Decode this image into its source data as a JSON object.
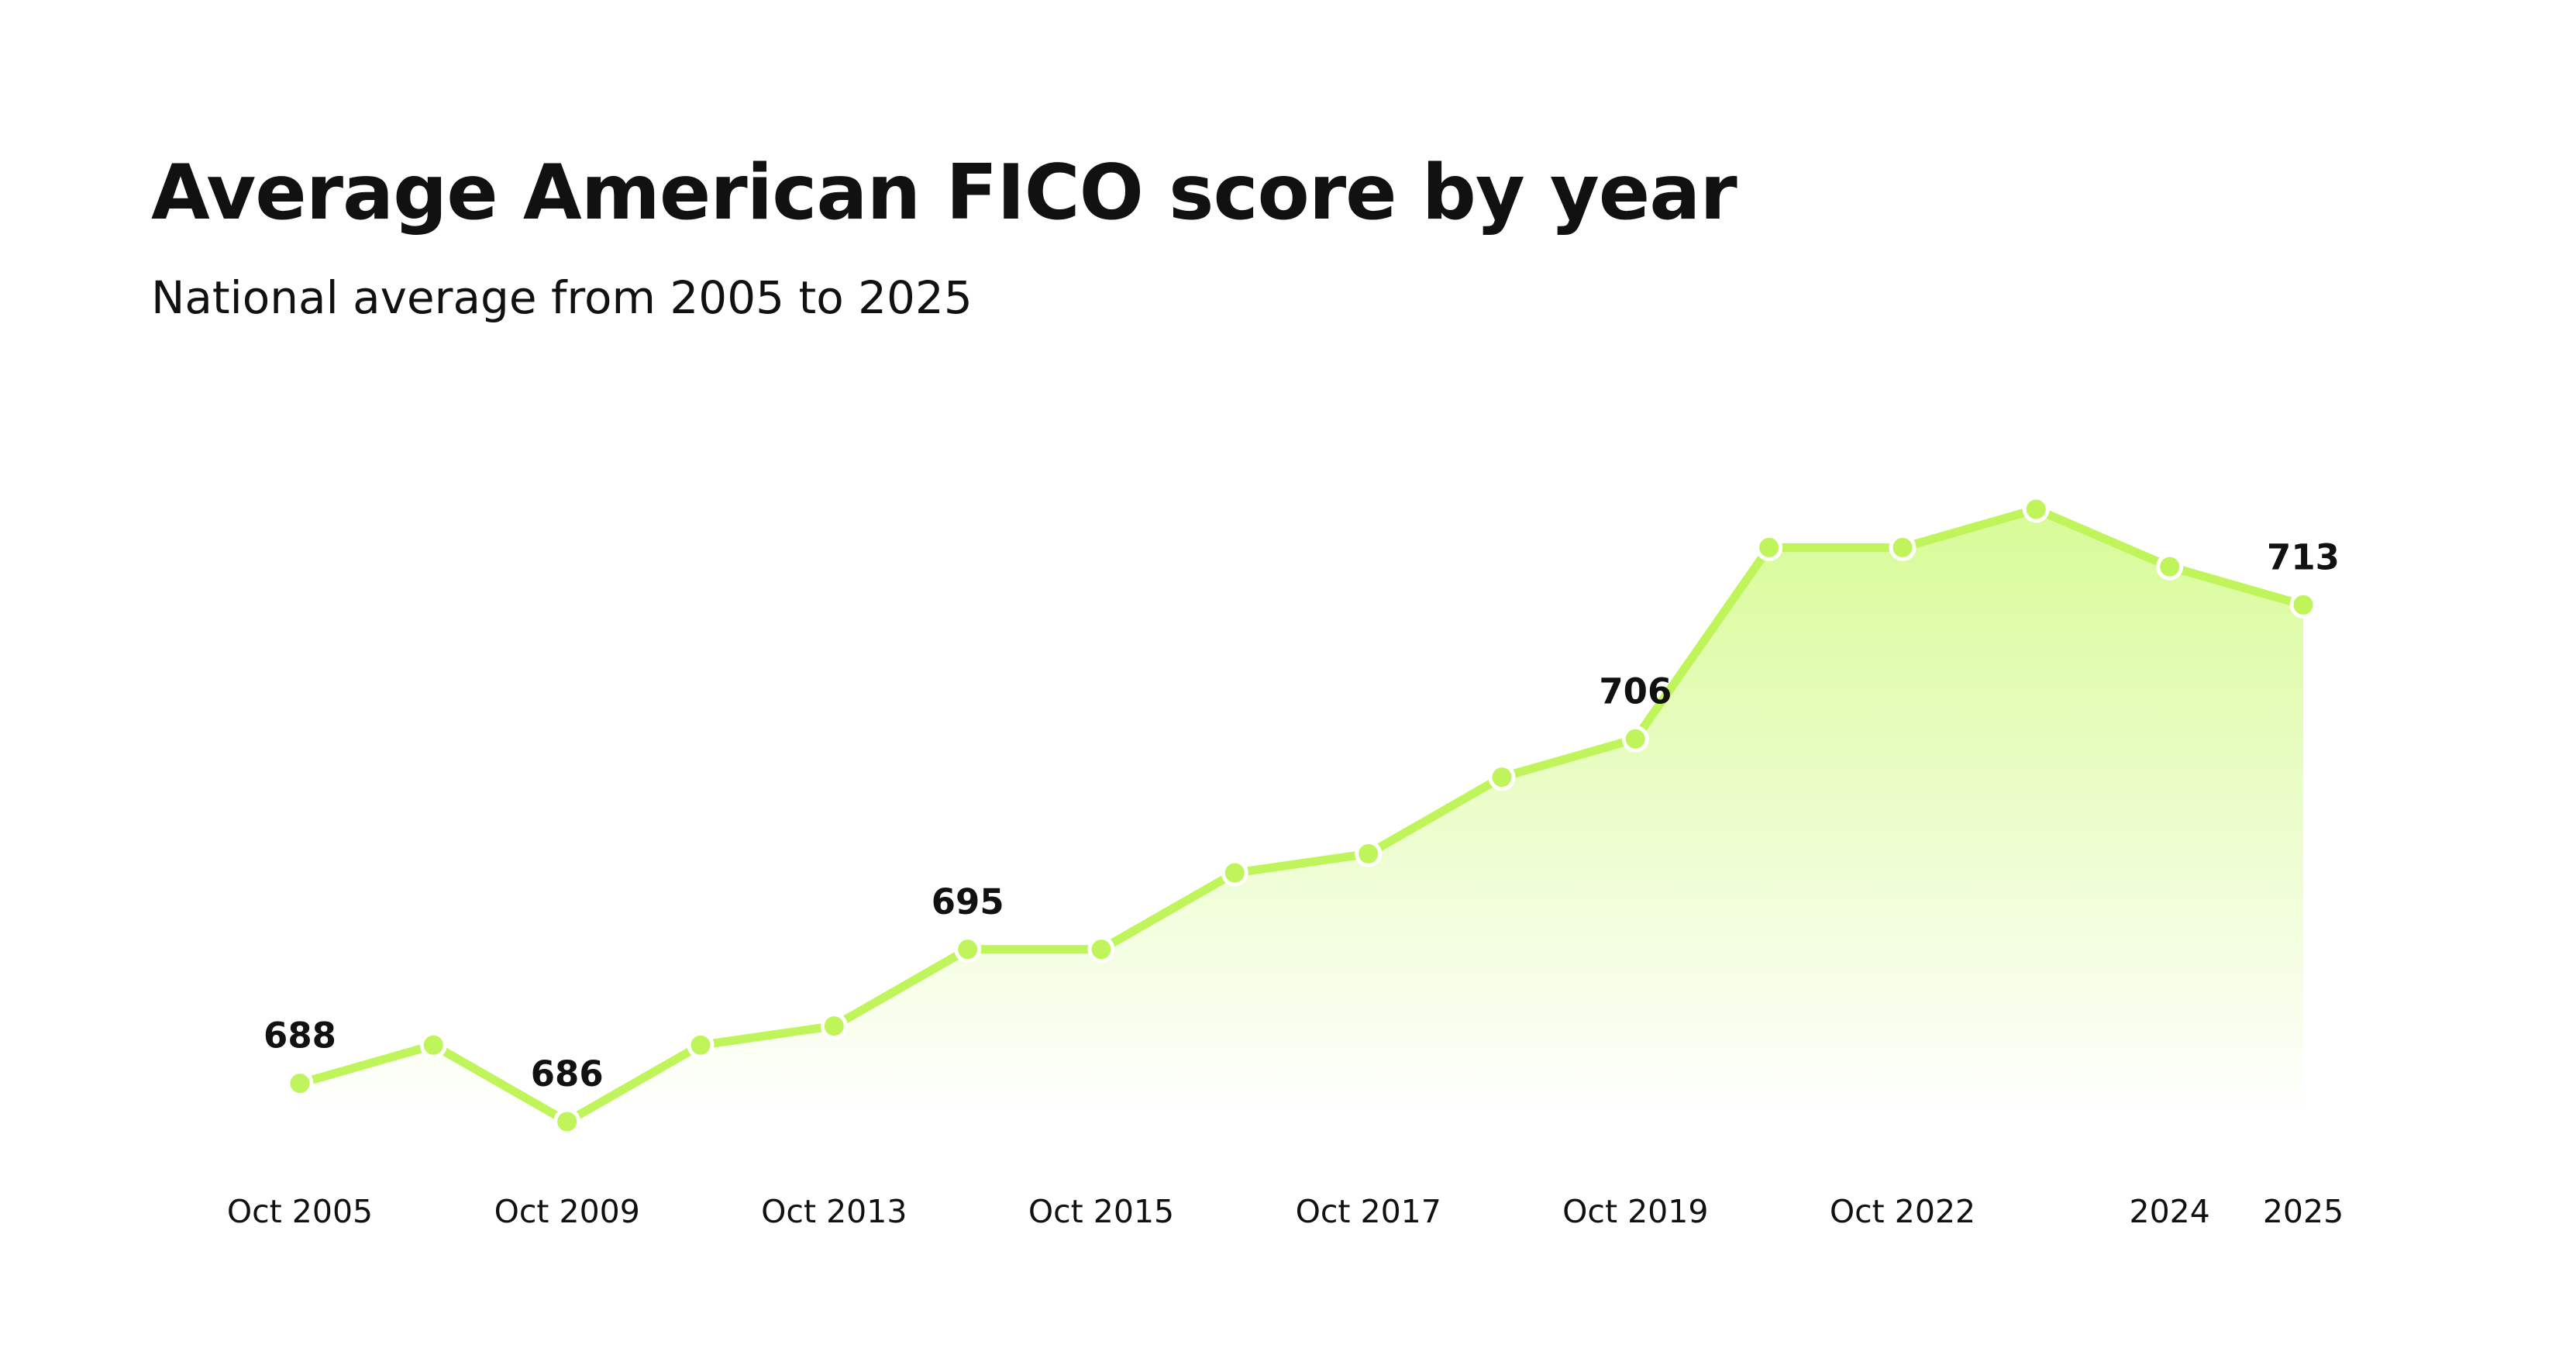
{
  "title": "Average American FICO score by year",
  "subtitle": "National average from 2005 to 2025",
  "colors": {
    "line": "#bff55a",
    "marker": "#bff55a",
    "marker_stroke": "#ffffff",
    "area_top": "#d8fb97",
    "area_bottom": "#ffffff",
    "text": "#111111"
  },
  "chart_data": {
    "type": "area",
    "title": "Average American FICO score by year",
    "subtitle": "National average from 2005 to 2025",
    "xlabel": "",
    "ylabel": "",
    "grid": false,
    "legend": "none",
    "x": [
      "Oct 2005",
      "",
      "Oct 2009",
      "",
      "Oct 2013",
      "",
      "Oct 2015",
      "",
      "Oct 2017",
      "",
      "Oct 2019",
      "",
      "Oct 2022",
      "",
      "2024",
      "2025"
    ],
    "x_tick_labels": [
      "Oct 2005",
      "Oct 2009",
      "Oct 2013",
      "Oct 2015",
      "Oct 2017",
      "Oct 2019",
      "Oct 2022",
      "2024",
      "2025"
    ],
    "series": [
      {
        "values": [
          688,
          690,
          686,
          690,
          691,
          695,
          695,
          699,
          700,
          704,
          706,
          716,
          716,
          718,
          715,
          713
        ]
      }
    ],
    "data_labels": [
      {
        "index": 0,
        "text": "688"
      },
      {
        "index": 2,
        "text": "686"
      },
      {
        "index": 5,
        "text": "695"
      },
      {
        "index": 10,
        "text": "706"
      },
      {
        "index": 15,
        "text": "713"
      }
    ]
  }
}
